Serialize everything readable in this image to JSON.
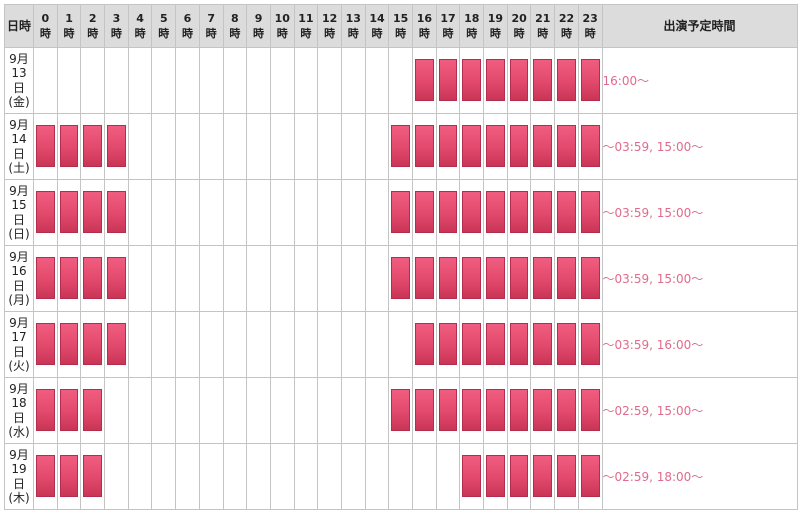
{
  "header": {
    "date_label": "日時",
    "hours": [
      {
        "num": "0",
        "unit": "時"
      },
      {
        "num": "1",
        "unit": "時"
      },
      {
        "num": "2",
        "unit": "時"
      },
      {
        "num": "3",
        "unit": "時"
      },
      {
        "num": "4",
        "unit": "時"
      },
      {
        "num": "5",
        "unit": "時"
      },
      {
        "num": "6",
        "unit": "時"
      },
      {
        "num": "7",
        "unit": "時"
      },
      {
        "num": "8",
        "unit": "時"
      },
      {
        "num": "9",
        "unit": "時"
      },
      {
        "num": "10",
        "unit": "時"
      },
      {
        "num": "11",
        "unit": "時"
      },
      {
        "num": "12",
        "unit": "時"
      },
      {
        "num": "13",
        "unit": "時"
      },
      {
        "num": "14",
        "unit": "時"
      },
      {
        "num": "15",
        "unit": "時"
      },
      {
        "num": "16",
        "unit": "時"
      },
      {
        "num": "17",
        "unit": "時"
      },
      {
        "num": "18",
        "unit": "時"
      },
      {
        "num": "19",
        "unit": "時"
      },
      {
        "num": "20",
        "unit": "時"
      },
      {
        "num": "21",
        "unit": "時"
      },
      {
        "num": "22",
        "unit": "時"
      },
      {
        "num": "23",
        "unit": "時"
      }
    ],
    "schedule_label": "出演予定時間"
  },
  "rows": [
    {
      "month": "9月",
      "day": "13",
      "day_unit": "日",
      "weekday": "(金)",
      "active_hours": [
        16,
        17,
        18,
        19,
        20,
        21,
        22,
        23
      ],
      "time_text": "16:00～"
    },
    {
      "month": "9月",
      "day": "14",
      "day_unit": "日",
      "weekday": "(土)",
      "active_hours": [
        0,
        1,
        2,
        3,
        15,
        16,
        17,
        18,
        19,
        20,
        21,
        22,
        23
      ],
      "time_text": "～03:59, 15:00～"
    },
    {
      "month": "9月",
      "day": "15",
      "day_unit": "日",
      "weekday": "(日)",
      "active_hours": [
        0,
        1,
        2,
        3,
        15,
        16,
        17,
        18,
        19,
        20,
        21,
        22,
        23
      ],
      "time_text": "～03:59, 15:00～"
    },
    {
      "month": "9月",
      "day": "16",
      "day_unit": "日",
      "weekday": "(月)",
      "active_hours": [
        0,
        1,
        2,
        3,
        15,
        16,
        17,
        18,
        19,
        20,
        21,
        22,
        23
      ],
      "time_text": "～03:59, 15:00～"
    },
    {
      "month": "9月",
      "day": "17",
      "day_unit": "日",
      "weekday": "(火)",
      "active_hours": [
        0,
        1,
        2,
        3,
        16,
        17,
        18,
        19,
        20,
        21,
        22,
        23
      ],
      "time_text": "～03:59, 16:00～"
    },
    {
      "month": "9月",
      "day": "18",
      "day_unit": "日",
      "weekday": "(水)",
      "active_hours": [
        0,
        1,
        2,
        15,
        16,
        17,
        18,
        19,
        20,
        21,
        22,
        23
      ],
      "time_text": "～02:59, 15:00～"
    },
    {
      "month": "9月",
      "day": "19",
      "day_unit": "日",
      "weekday": "(木)",
      "active_hours": [
        0,
        1,
        2,
        18,
        19,
        20,
        21,
        22,
        23
      ],
      "time_text": "～02:59, 18:00～"
    }
  ],
  "colors": {
    "header_bg": "#dcdcdc",
    "block_fill": "#e8506f",
    "time_text": "#e06b8c",
    "grid_line": "#c4c4c4"
  }
}
